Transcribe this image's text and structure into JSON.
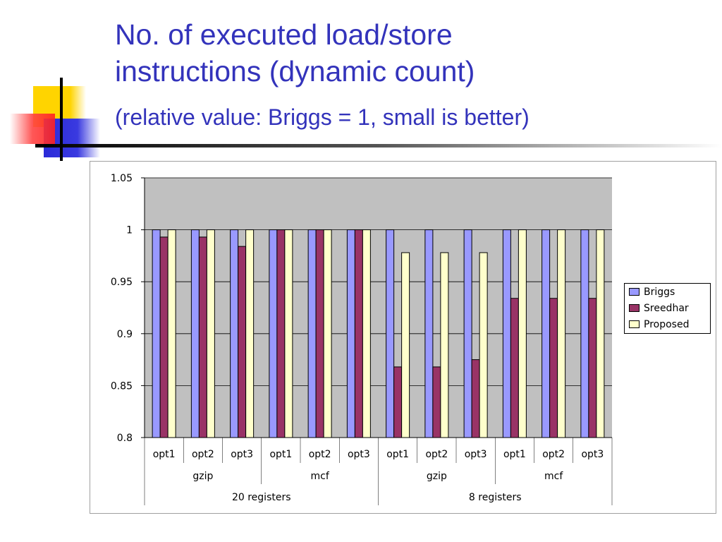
{
  "slide": {
    "title_line1": "No. of executed load/store",
    "title_line2": "instructions (dynamic count)",
    "subtitle": "(relative value: Briggs = 1, small is better)",
    "title_color": "#3333bb"
  },
  "chart_data": {
    "type": "bar",
    "ylim": [
      0.8,
      1.05
    ],
    "yticks": [
      "0.8",
      "0.85",
      "0.9",
      "0.95",
      "1",
      "1.05"
    ],
    "grid": true,
    "legend_position": "right",
    "categories": [
      "opt1",
      "opt2",
      "opt3",
      "opt1",
      "opt2",
      "opt3",
      "opt1",
      "opt2",
      "opt3",
      "opt1",
      "opt2",
      "opt3"
    ],
    "groups_level2": [
      "gzip",
      "mcf",
      "gzip",
      "mcf"
    ],
    "groups_level3": [
      "20 registers",
      "8 registers"
    ],
    "series": [
      {
        "name": "Briggs",
        "color": "#9999ff",
        "values": [
          1,
          1,
          1,
          1,
          1,
          1,
          1,
          1,
          1,
          1,
          1,
          1
        ]
      },
      {
        "name": "Sreedhar",
        "color": "#993366",
        "values": [
          0.993,
          0.993,
          0.984,
          1,
          1,
          1,
          0.868,
          0.868,
          0.875,
          0.934,
          0.934,
          0.934
        ]
      },
      {
        "name": "Proposed",
        "color": "#ffffcc",
        "values": [
          1,
          1,
          1,
          1,
          1,
          1,
          0.978,
          0.978,
          0.978,
          1,
          1,
          1
        ]
      }
    ]
  }
}
